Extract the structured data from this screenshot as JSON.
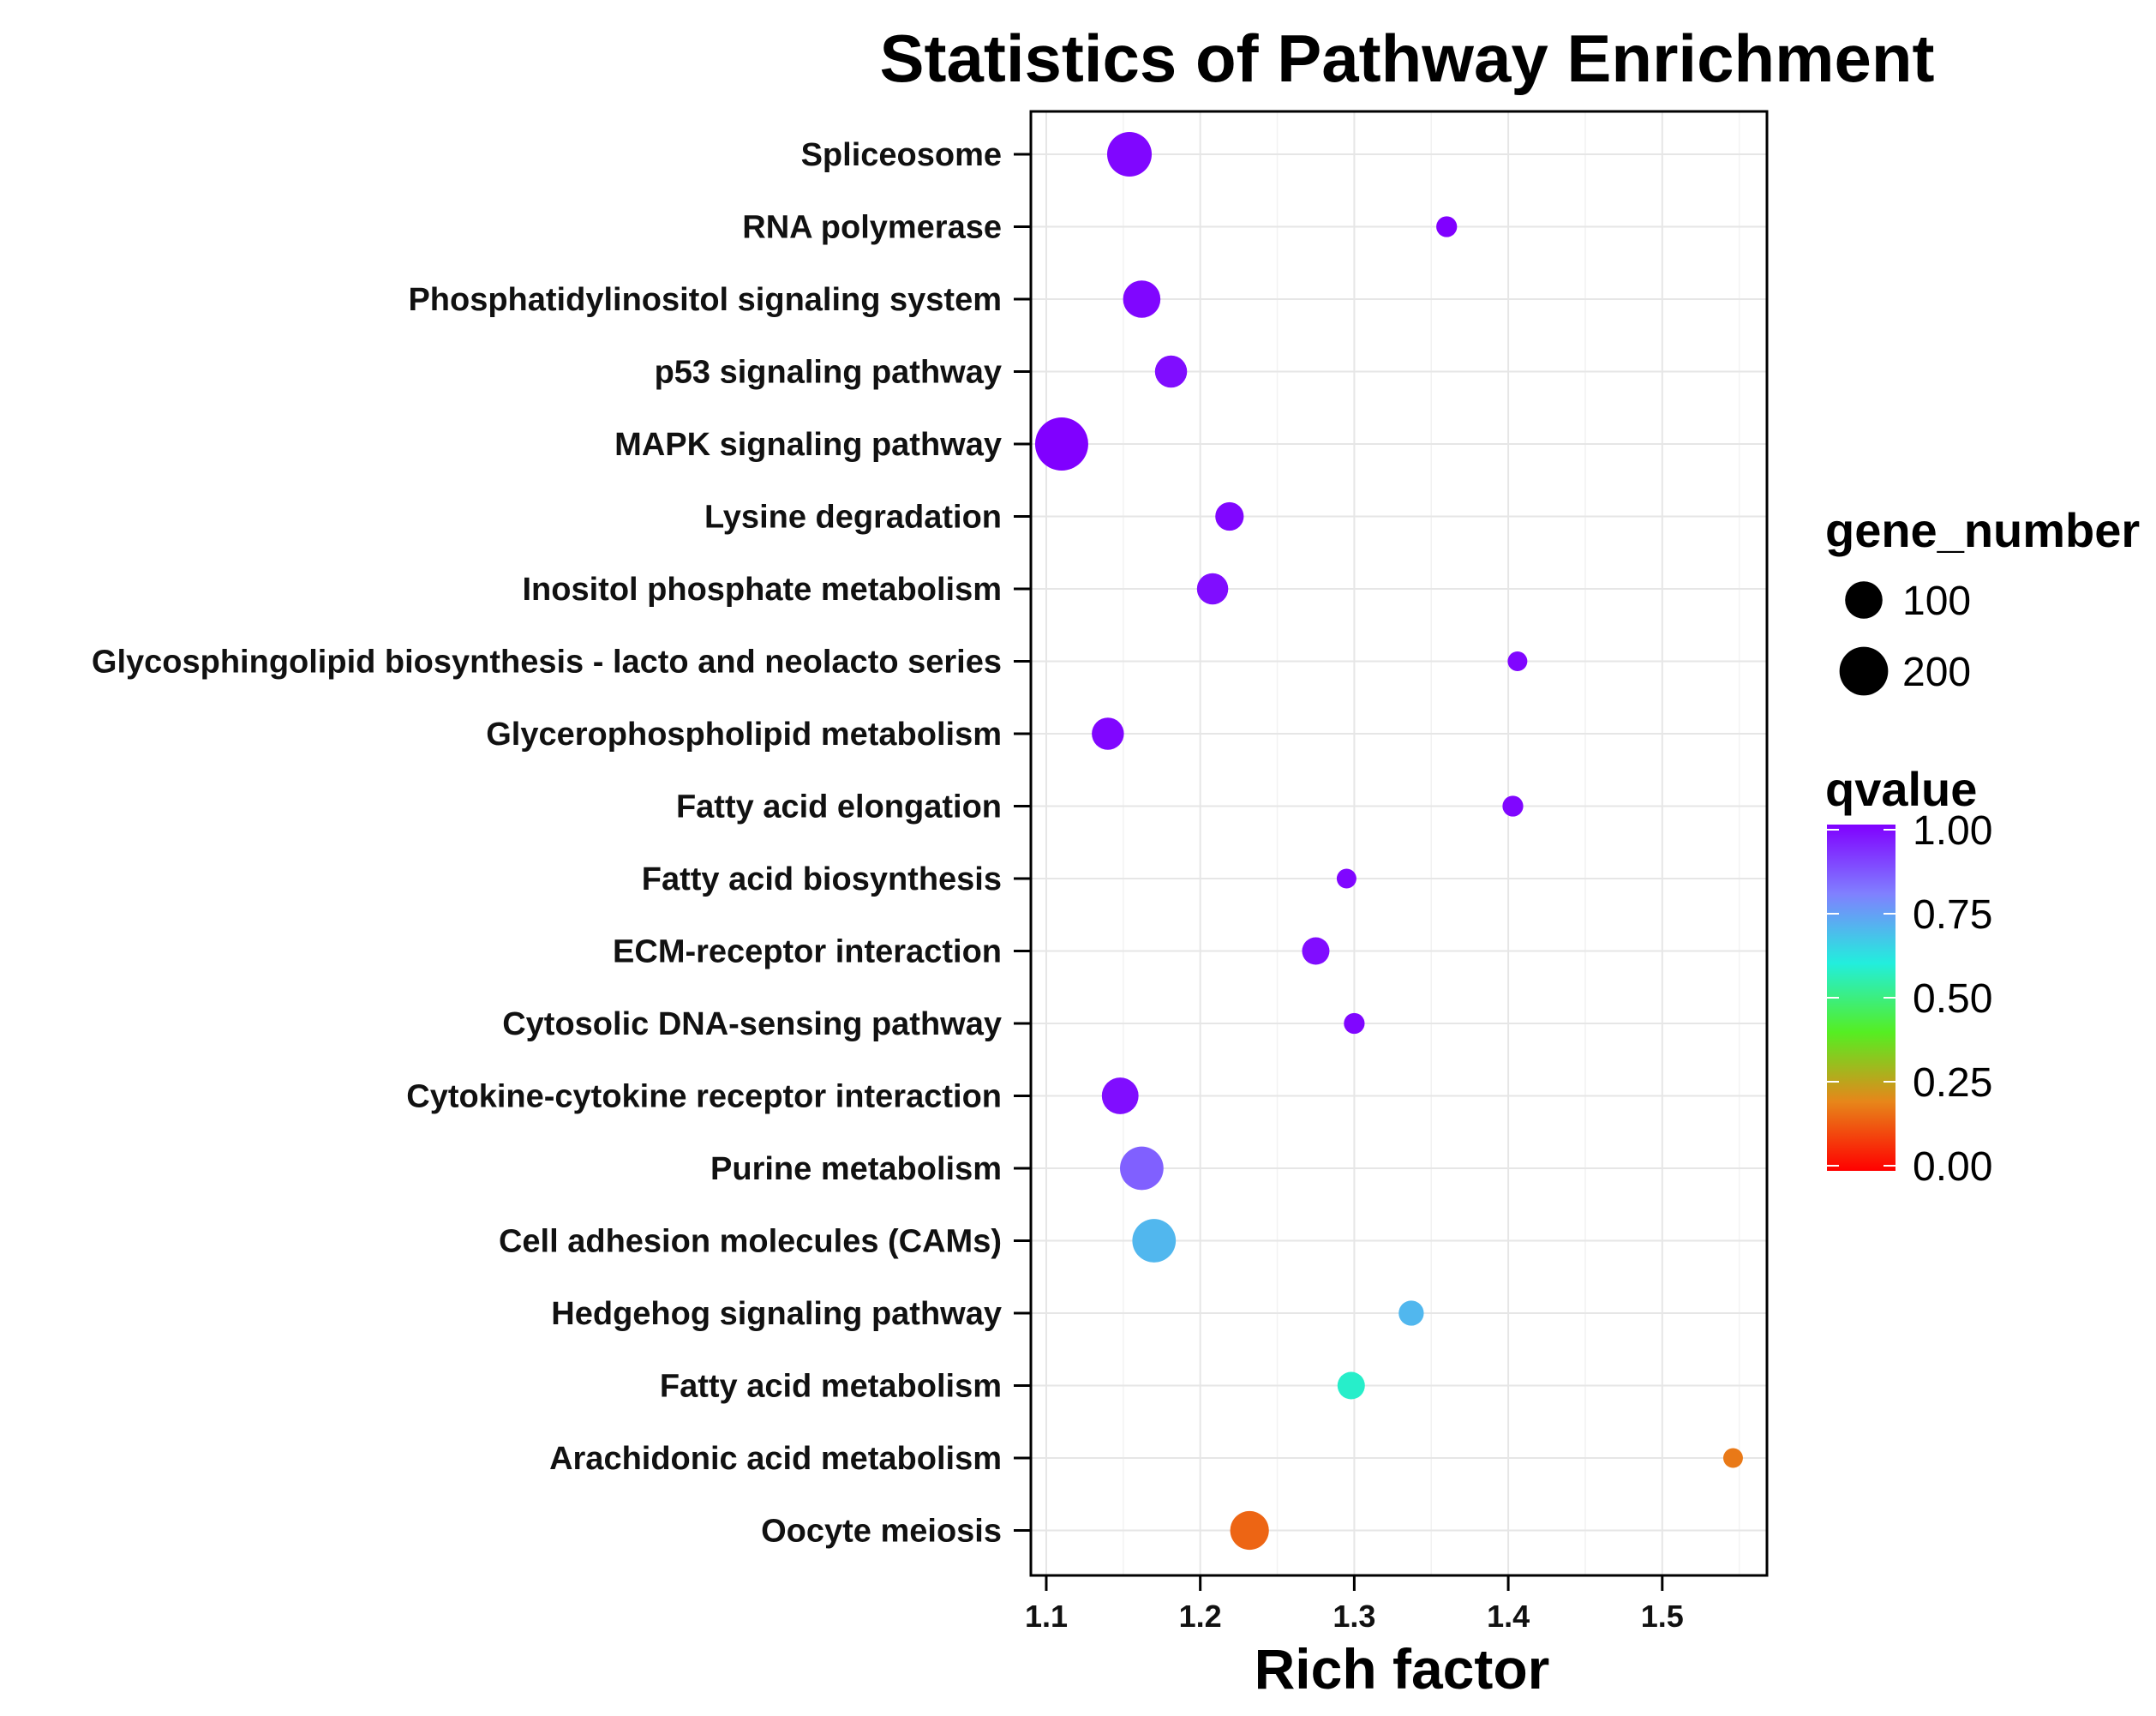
{
  "chart_data": {
    "type": "scatter",
    "title": "Statistics of Pathway Enrichment",
    "xlabel": "Rich factor",
    "ylabel": "",
    "xlim": [
      1.09,
      1.568
    ],
    "xticks": [
      "1.1",
      "1.2",
      "1.3",
      "1.4",
      "1.5"
    ],
    "grid": true,
    "categories": [
      "Spliceosome",
      "RNA polymerase",
      "Phosphatidylinositol signaling system",
      "p53 signaling pathway",
      "MAPK signaling pathway",
      "Lysine degradation",
      "Inositol phosphate metabolism",
      "Glycosphingolipid biosynthesis - lacto and neolacto series",
      "Glycerophospholipid metabolism",
      "Fatty acid elongation",
      "Fatty acid biosynthesis",
      "ECM-receptor interaction",
      "Cytosolic DNA-sensing pathway",
      "Cytokine-cytokine receptor interaction",
      "Purine metabolism",
      "Cell adhesion molecules (CAMs)",
      "Hedgehog signaling pathway",
      "Fatty acid metabolism",
      "Arachidonic acid metabolism",
      "Oocyte meiosis"
    ],
    "rich_factor": [
      1.154,
      1.36,
      1.162,
      1.181,
      1.11,
      1.219,
      1.208,
      1.406,
      1.14,
      1.403,
      1.295,
      1.275,
      1.3,
      1.148,
      1.162,
      1.17,
      1.337,
      1.298,
      1.546,
      1.232
    ],
    "gene_number": [
      160,
      15,
      100,
      65,
      250,
      45,
      60,
      12,
      65,
      15,
      12,
      40,
      15,
      95,
      150,
      150,
      30,
      40,
      12,
      110
    ],
    "qvalue": [
      0.99,
      1.0,
      0.99,
      0.98,
      1.0,
      0.99,
      0.98,
      0.99,
      0.99,
      0.99,
      0.99,
      0.98,
      0.99,
      0.98,
      0.85,
      0.7,
      0.7,
      0.58,
      0.18,
      0.15
    ],
    "legend": {
      "size_title": "gene_number",
      "size_entries": [
        {
          "label": "100",
          "value": 100
        },
        {
          "label": "200",
          "value": 200
        }
      ],
      "color_title": "qvalue",
      "color_ticks": [
        {
          "label": "1.00",
          "value": 1.0
        },
        {
          "label": "0.75",
          "value": 0.75
        },
        {
          "label": "0.50",
          "value": 0.5
        },
        {
          "label": "0.25",
          "value": 0.25
        },
        {
          "label": "0.00",
          "value": 0.0
        }
      ],
      "placement": "right"
    },
    "color_scale": [
      "#ff0000",
      "#e7861a",
      "#55ee22",
      "#22eedd",
      "#8080ff",
      "#8000ff"
    ]
  }
}
